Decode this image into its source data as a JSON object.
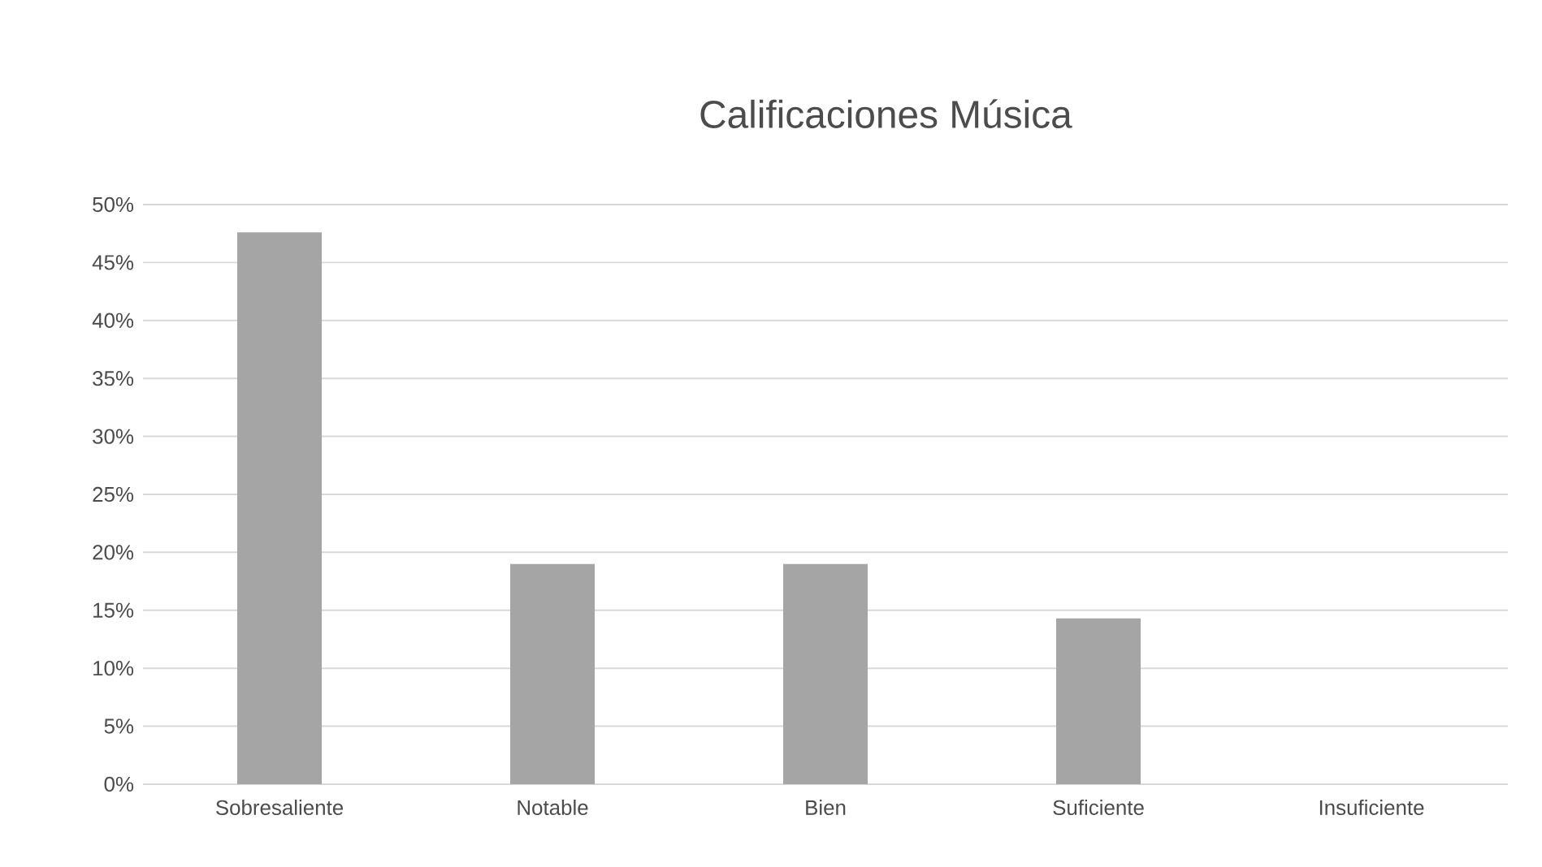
{
  "chart_data": {
    "type": "bar",
    "title": "Calificaciones Música",
    "categories": [
      "Sobresaliente",
      "Notable",
      "Bien",
      "Suficiente",
      "Insuficiente"
    ],
    "values": [
      47.6,
      19.0,
      19.0,
      14.3,
      0
    ],
    "color": "#a5a5a5",
    "ylim": [
      0,
      50
    ],
    "yticks": [
      {
        "value": 0,
        "label": "0%"
      },
      {
        "value": 5,
        "label": "5%"
      },
      {
        "value": 10,
        "label": "10%"
      },
      {
        "value": 15,
        "label": "15%"
      },
      {
        "value": 20,
        "label": "20%"
      },
      {
        "value": 25,
        "label": "25%"
      },
      {
        "value": 30,
        "label": "30%"
      },
      {
        "value": 35,
        "label": "35%"
      },
      {
        "value": 40,
        "label": "40%"
      },
      {
        "value": 45,
        "label": "45%"
      },
      {
        "value": 50,
        "label": "50%"
      }
    ],
    "grid": "y"
  }
}
